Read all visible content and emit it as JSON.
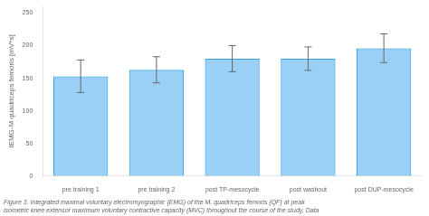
{
  "chart_data": {
    "type": "bar",
    "ylabel": "IEMG-M quadriceps femoris [mV*s]",
    "categories": [
      "pre training 1",
      "pre training 2",
      "post TP-mesocycle",
      "post washout",
      "post DUP-mesocycle"
    ],
    "values": [
      153,
      163,
      180,
      180,
      196
    ],
    "errors": [
      25,
      20,
      20,
      18,
      22
    ],
    "ylim": [
      0,
      260
    ],
    "yticks": [
      0,
      50,
      100,
      150,
      200,
      250
    ],
    "grid": false,
    "annotations": [
      "Figure 3. Integrated maximal voluntary electromyographic (EMG) of the M. quadriceps femoris (QF) at peak\nisometric knee extensor maximum voluntary contractive capacity (MVC) throughout the course of the study. Data"
    ]
  }
}
